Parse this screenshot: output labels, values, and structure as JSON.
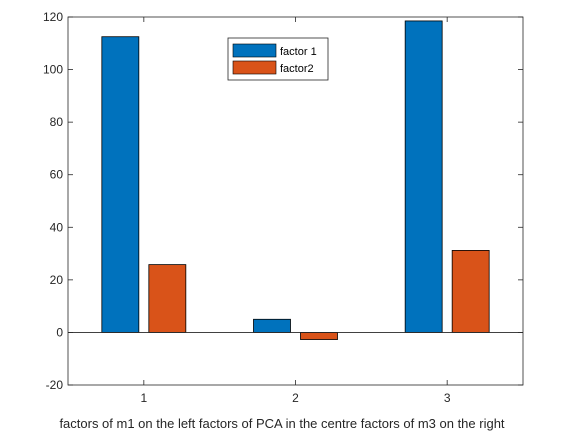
{
  "chart_data": {
    "type": "bar",
    "categories": [
      "1",
      "2",
      "3"
    ],
    "series": [
      {
        "name": "factor 1",
        "values": [
          112.5,
          5,
          118.5
        ],
        "color": "#0072BD"
      },
      {
        "name": "factor2",
        "values": [
          25.8,
          -2.7,
          31.2
        ],
        "color": "#D95319"
      }
    ],
    "xlabel": "factors of m1 on the left factors of PCA in the centre factors of m3 on the right",
    "ylim": [
      -20,
      120
    ],
    "yticks": [
      -20,
      0,
      20,
      40,
      60,
      80,
      100,
      120
    ],
    "legend": "top-center",
    "grid": false
  }
}
